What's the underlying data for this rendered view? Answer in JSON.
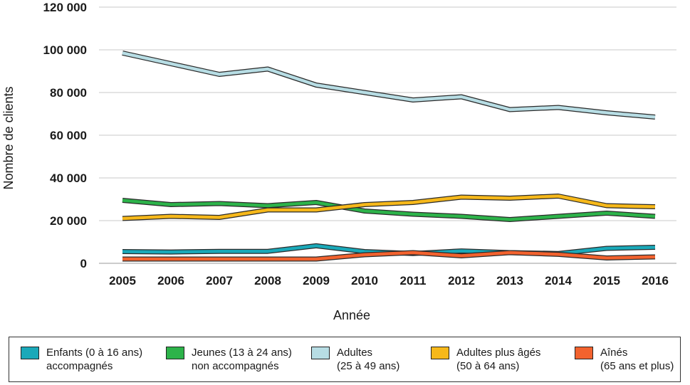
{
  "chart_data": {
    "type": "line",
    "title": "",
    "xlabel": "Année",
    "ylabel": "Nombre de clients",
    "ylim": [
      0,
      120000
    ],
    "yticks": [
      0,
      20000,
      40000,
      60000,
      80000,
      100000,
      120000
    ],
    "ytick_labels": [
      "0",
      "20 000",
      "40 000",
      "60 000",
      "80 000",
      "100 000",
      "120 000"
    ],
    "grid": "horizontal",
    "legend_position": "bottom",
    "x": [
      "2005",
      "2006",
      "2007",
      "2008",
      "2009",
      "2010",
      "2011",
      "2012",
      "2013",
      "2014",
      "2015",
      "2016"
    ],
    "series": [
      {
        "key": "enfants",
        "legend_line1": "Enfants (0 à 16 ans)",
        "legend_line2": "accompagnés",
        "color": "#1aa9b9",
        "values": [
          5500,
          5300,
          5600,
          5600,
          8200,
          5500,
          4600,
          5800,
          5000,
          4600,
          7000,
          7500
        ]
      },
      {
        "key": "jeunes",
        "legend_line1": "Jeunes (13 à 24 ans)",
        "legend_line2": "non accompagnés",
        "color": "#2db34a",
        "values": [
          29500,
          27500,
          28000,
          27000,
          28500,
          24500,
          23000,
          22000,
          20500,
          22000,
          23500,
          22000
        ]
      },
      {
        "key": "adultes",
        "legend_line1": "Adultes",
        "legend_line2": "(25 à 49 ans)",
        "color": "#b7dde4",
        "values": [
          98500,
          93500,
          88500,
          91000,
          83500,
          80000,
          76500,
          78000,
          72000,
          73000,
          70500,
          68500
        ]
      },
      {
        "key": "adultes_ages",
        "legend_line1": "Adultes plus âgés",
        "legend_line2": "(50 à 64 ans)",
        "color": "#f6b81a",
        "values": [
          21000,
          22000,
          21500,
          25000,
          25000,
          27500,
          28500,
          31000,
          30500,
          31500,
          27000,
          26500
        ]
      },
      {
        "key": "aines",
        "legend_line1": "Aînés",
        "legend_line2": "(65 ans et plus)",
        "color": "#f2622e",
        "values": [
          2000,
          2000,
          2000,
          2000,
          2000,
          4000,
          5000,
          3500,
          5000,
          4200,
          2500,
          3000
        ]
      }
    ]
  }
}
